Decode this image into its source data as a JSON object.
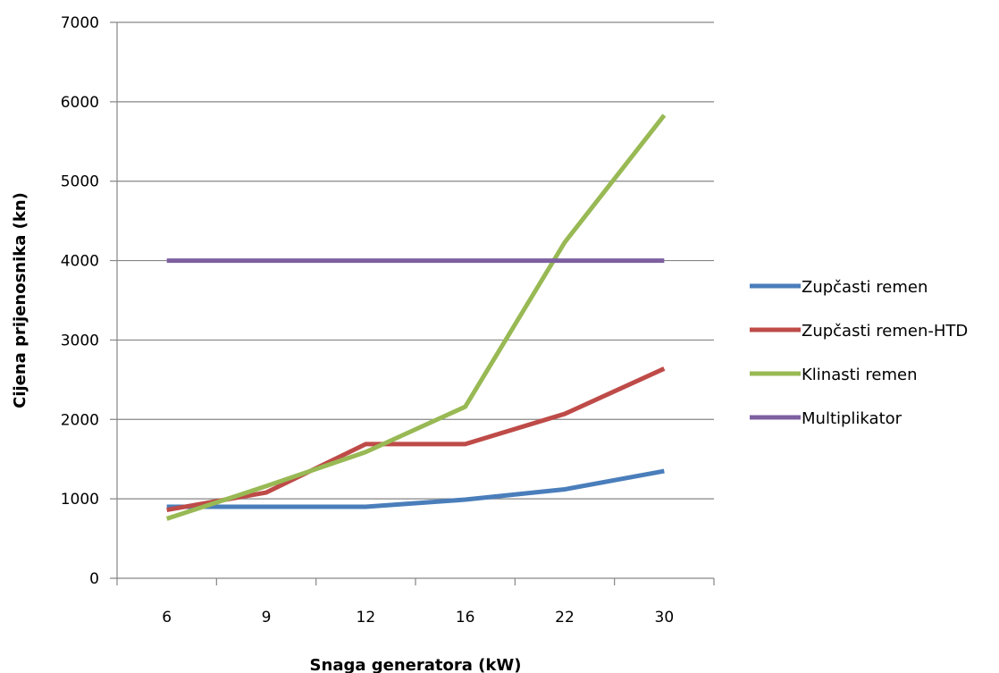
{
  "chart_data": {
    "type": "line",
    "title": "",
    "xlabel": "Snaga generatora (kW)",
    "ylabel": "Cijena prijenosnika  (kn)",
    "categories": [
      "6",
      "9",
      "12",
      "16",
      "22",
      "30"
    ],
    "ylim": [
      0,
      7000
    ],
    "yticks": [
      0,
      1000,
      2000,
      3000,
      4000,
      5000,
      6000,
      7000
    ],
    "grid": true,
    "legend": "right",
    "series": [
      {
        "name": "Zupčasti remen",
        "color": "#4a7ebb",
        "values": [
          900,
          900,
          900,
          990,
          1120,
          1350
        ]
      },
      {
        "name": "Zupčasti remen-HTD",
        "color": "#be4b48",
        "values": [
          860,
          1080,
          1690,
          1690,
          2070,
          2640
        ]
      },
      {
        "name": "Klinasti remen",
        "color": "#98b954",
        "values": [
          750,
          1160,
          1590,
          2160,
          4230,
          5830
        ]
      },
      {
        "name": "Multiplikator",
        "color": "#7d60a0",
        "values": [
          4000,
          4000,
          4000,
          4000,
          4000,
          4000
        ]
      }
    ]
  }
}
